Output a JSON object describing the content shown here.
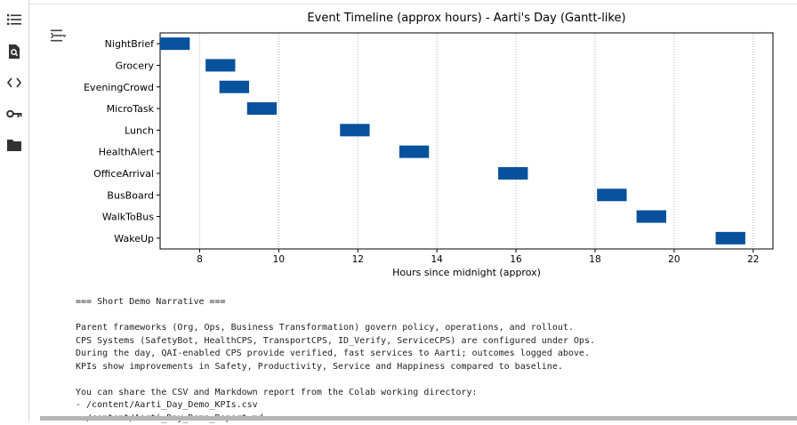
{
  "sidebar": {
    "items": [
      {
        "name": "table-of-contents",
        "icon": "list-icon"
      },
      {
        "name": "find-and-replace",
        "icon": "search-document-icon"
      },
      {
        "name": "code-snippets",
        "icon": "code-icon"
      },
      {
        "name": "secrets",
        "icon": "key-icon"
      },
      {
        "name": "files",
        "icon": "folder-icon"
      }
    ]
  },
  "output_toggle": {
    "icon": "output-collapse-icon"
  },
  "chart_data": {
    "type": "bar",
    "orientation": "horizontal",
    "title": "Event Timeline (approx hours) - Aarti's Day (Gantt-like)",
    "xlabel": "Hours since midnight (approx)",
    "ylabel": "",
    "xlim": [
      7,
      22.5
    ],
    "xticks": [
      8,
      10,
      12,
      14,
      16,
      18,
      20,
      22
    ],
    "grid": "x-dotted",
    "color": "#08519c",
    "tasks": [
      {
        "label": "NightBrief",
        "start": 7.0,
        "end": 7.75
      },
      {
        "label": "Grocery",
        "start": 8.15,
        "end": 8.9
      },
      {
        "label": "EveningCrowd",
        "start": 8.5,
        "end": 9.25
      },
      {
        "label": "MicroTask",
        "start": 9.2,
        "end": 9.95
      },
      {
        "label": "Lunch",
        "start": 11.55,
        "end": 12.3
      },
      {
        "label": "HealthAlert",
        "start": 13.05,
        "end": 13.8
      },
      {
        "label": "OfficeArrival",
        "start": 15.55,
        "end": 16.3
      },
      {
        "label": "BusBoard",
        "start": 18.05,
        "end": 18.8
      },
      {
        "label": "WalkToBus",
        "start": 19.05,
        "end": 19.8
      },
      {
        "label": "WakeUp",
        "start": 21.05,
        "end": 21.8
      }
    ]
  },
  "narrative": {
    "lines": [
      "=== Short Demo Narrative ===",
      "",
      "Parent frameworks (Org, Ops, Business Transformation) govern policy, operations, and rollout.",
      "CPS Systems (SafetyBot, HealthCPS, TransportCPS, ID_Verify, ServiceCPS) are configured under Ops.",
      "During the day, QAI-enabled CPS provide verified, fast services to Aarti; outcomes logged above.",
      "KPIs show improvements in Safety, Productivity, Service and Happiness compared to baseline.",
      "",
      "You can share the CSV and Markdown report from the Colab working directory:",
      "- /content/Aarti_Day_Demo_KPIs.csv",
      "- /content/Aarti_Day_Demo_Report.md"
    ]
  }
}
